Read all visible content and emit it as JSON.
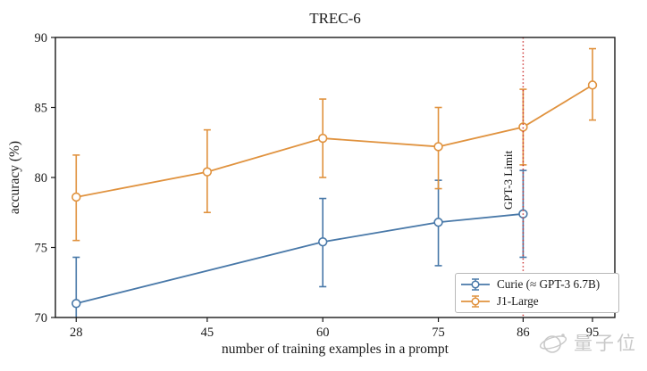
{
  "chart_data": {
    "type": "line",
    "title": "TREC-6",
    "xlabel": "number of training examples in a prompt",
    "ylabel": "accuracy (%)",
    "xlim": [
      25.3,
      97.9
    ],
    "ylim": [
      70,
      90
    ],
    "xticks": [
      28,
      45,
      60,
      75,
      86,
      95
    ],
    "yticks": [
      70,
      75,
      80,
      85,
      90
    ],
    "grid": false,
    "legend_position": "lower right",
    "annotation": {
      "type": "vline",
      "x": 86,
      "label": "GPT-3 Limit",
      "line_style": "dotted",
      "color": "#cc3333"
    },
    "series": [
      {
        "name": "Curie (≈ GPT-3 6.7B)",
        "color": "#4878a8",
        "marker": "open-circle",
        "points": [
          {
            "x": 28,
            "y": 71.0,
            "lo": 67.7,
            "hi": 74.3
          },
          {
            "x": 60,
            "y": 75.4,
            "lo": 72.2,
            "hi": 78.5
          },
          {
            "x": 75,
            "y": 76.8,
            "lo": 73.7,
            "hi": 79.8
          },
          {
            "x": 86,
            "y": 77.4,
            "lo": 74.3,
            "hi": 80.5
          }
        ]
      },
      {
        "name": "J1-Large",
        "color": "#e0923e",
        "marker": "open-circle",
        "points": [
          {
            "x": 28,
            "y": 78.6,
            "lo": 75.5,
            "hi": 81.6
          },
          {
            "x": 45,
            "y": 80.4,
            "lo": 77.5,
            "hi": 83.4
          },
          {
            "x": 60,
            "y": 82.8,
            "lo": 80.0,
            "hi": 85.6
          },
          {
            "x": 75,
            "y": 82.2,
            "lo": 79.2,
            "hi": 85.0
          },
          {
            "x": 86,
            "y": 83.6,
            "lo": 80.9,
            "hi": 86.3
          },
          {
            "x": 95,
            "y": 86.6,
            "lo": 84.1,
            "hi": 89.2
          }
        ]
      }
    ]
  },
  "watermark": {
    "text": "量子位"
  },
  "colors": {
    "axis": "#1a1a1a",
    "background": "#ffffff",
    "watermark": "#c9c9c9"
  }
}
